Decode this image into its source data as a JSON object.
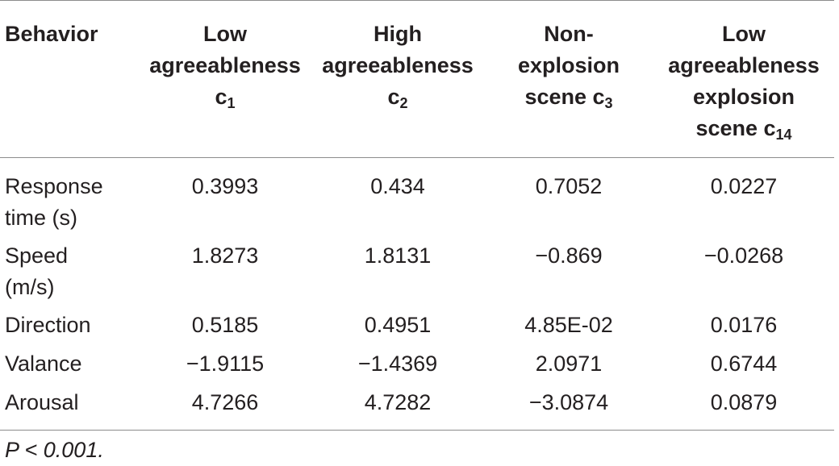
{
  "table": {
    "headers": [
      {
        "text": "Behavior",
        "sub": ""
      },
      {
        "text": "Low agreeableness c",
        "sub": "1"
      },
      {
        "text": "High agreeableness c",
        "sub": "2"
      },
      {
        "text": "Non-explosion scene c",
        "sub": "3"
      },
      {
        "text": "Low agreeableness explosion scene c",
        "sub": "14"
      }
    ],
    "rows": [
      {
        "behavior": "Response time (s)",
        "values": [
          "0.3993",
          "0.434",
          "0.7052",
          "0.0227"
        ]
      },
      {
        "behavior": "Speed (m/s)",
        "values": [
          "1.8273",
          "1.8131",
          "−0.869",
          "−0.0268"
        ]
      },
      {
        "behavior": "Direction",
        "values": [
          "0.5185",
          "0.4951",
          "4.85E-02",
          "0.0176"
        ]
      },
      {
        "behavior": "Valance",
        "values": [
          "−1.9115",
          "−1.4369",
          "2.0971",
          "0.6744"
        ]
      },
      {
        "behavior": "Arousal",
        "values": [
          "4.7266",
          "4.7282",
          "−3.0874",
          "0.0879"
        ]
      }
    ]
  },
  "footnote": "P < 0.001."
}
